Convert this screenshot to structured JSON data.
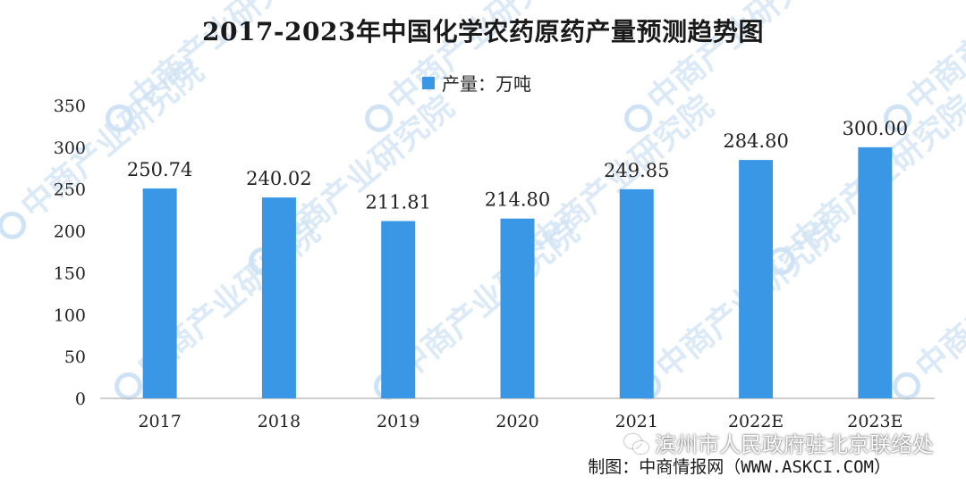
{
  "title": "2017-2023年中国化学农药原药产量预测趋势图",
  "watermark": "中商产业研究院",
  "wechat_overlay": "滨州市人民政府驻北京联络处",
  "source": "制图：中商情报网（WWW.ASKCI.COM）",
  "colors": {
    "bar": "#3a97e6",
    "watermark": "#cfe3f4"
  },
  "chart_data": {
    "type": "bar",
    "title": "2017-2023年中国化学农药原药产量预测趋势图",
    "categories": [
      "2017",
      "2018",
      "2019",
      "2020",
      "2021",
      "2022E",
      "2023E"
    ],
    "series": [
      {
        "name": "产量：万吨",
        "values": [
          250.74,
          240.02,
          211.81,
          214.8,
          249.85,
          284.8,
          300.0
        ],
        "value_labels": [
          "250.74",
          "240.02",
          "211.81",
          "214.80",
          "249.85",
          "284.80",
          "300.00"
        ]
      }
    ],
    "ylim": [
      0,
      350
    ],
    "yticks": [
      0,
      50,
      100,
      150,
      200,
      250,
      300,
      350
    ],
    "xlabel": "",
    "ylabel": "",
    "grid": false,
    "legend_position": "top-center"
  }
}
